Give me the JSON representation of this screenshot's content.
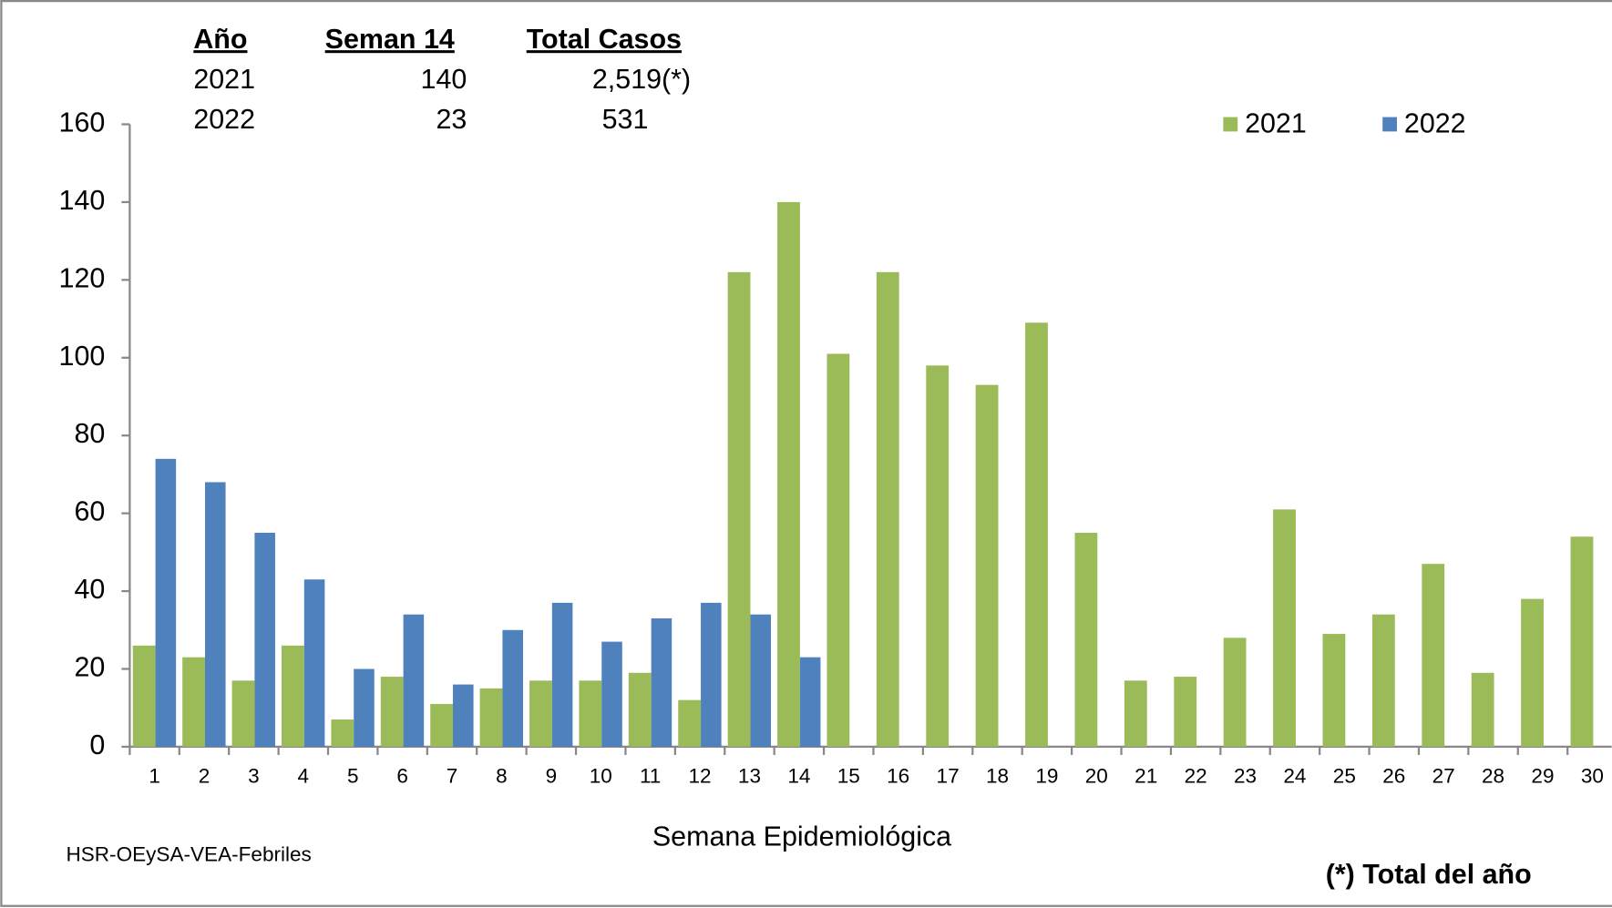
{
  "chart_data": {
    "type": "bar",
    "x_label": "Semana Epidemiológica",
    "source": "HSR-OEySA-VEA-Febriles",
    "footnote": "(*) Total del año",
    "summary_table": {
      "columns": [
        "Año",
        "Seman  14",
        "Total Casos"
      ],
      "rows": [
        [
          "2021",
          "140",
          "2,519(*)"
        ],
        [
          "2022",
          "23",
          "531"
        ]
      ]
    },
    "categories": [
      "1",
      "2",
      "3",
      "4",
      "5",
      "6",
      "7",
      "8",
      "9",
      "10",
      "11",
      "12",
      "13",
      "14",
      "15",
      "16",
      "17",
      "18",
      "19",
      "20",
      "21",
      "22",
      "23",
      "24",
      "25",
      "26",
      "27",
      "28",
      "29",
      "30"
    ],
    "series": [
      {
        "name": "2021",
        "color": "#9bbb59",
        "values": [
          26,
          23,
          17,
          26,
          7,
          18,
          11,
          15,
          17,
          17,
          19,
          12,
          122,
          140,
          101,
          122,
          98,
          93,
          109,
          55,
          17,
          18,
          28,
          61,
          29,
          34,
          47,
          19,
          38,
          54
        ]
      },
      {
        "name": "2022",
        "color": "#4f81bd",
        "values": [
          74,
          68,
          55,
          43,
          20,
          34,
          16,
          30,
          37,
          27,
          33,
          37,
          34,
          23,
          null,
          null,
          null,
          null,
          null,
          null,
          null,
          null,
          null,
          null,
          null,
          null,
          null,
          null,
          null,
          null
        ]
      }
    ],
    "ylim": [
      0,
      160
    ],
    "yticks": [
      0,
      20,
      40,
      60,
      80,
      100,
      120,
      140,
      160
    ],
    "grid": false,
    "legend": "top-right"
  }
}
